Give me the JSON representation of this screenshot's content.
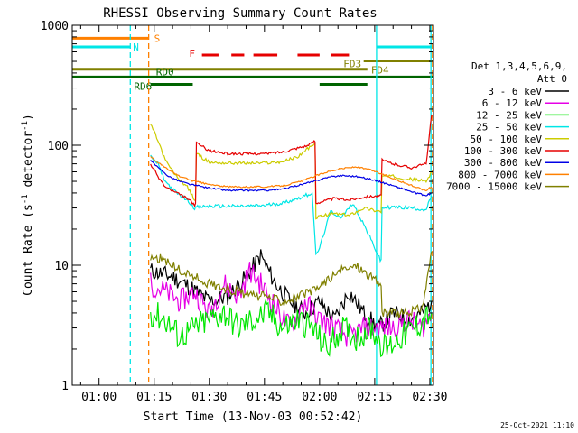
{
  "chart_data": {
    "type": "line",
    "title": "RHESSI Observing Summary Count Rates",
    "xlabel": "Start Time (13-Nov-03 00:52:42)",
    "ylabel_prefix": "Count Rate (s",
    "ylabel_sup": "-1",
    "ylabel_mid": " detector",
    "ylabel_suffix": ")",
    "x_axis": {
      "unit": "minutes since 00:00",
      "range": [
        52.7,
        151.0
      ],
      "ticks": [
        60,
        75,
        90,
        105,
        120,
        135,
        150
      ],
      "tick_labels": [
        "01:00",
        "01:15",
        "01:30",
        "01:45",
        "02:00",
        "02:15",
        "02:30"
      ]
    },
    "y_axis": {
      "scale": "log",
      "range": [
        1,
        1000
      ],
      "ticks": [
        1,
        10,
        100,
        1000
      ],
      "tick_labels": [
        "1",
        "10",
        "100",
        "1000"
      ]
    },
    "legend_header": [
      "Det 1,3,4,5,6,9,",
      "Att 0"
    ],
    "series": [
      {
        "name": "3 - 6 keV",
        "color": "#000000",
        "x": [
          74,
          80,
          85,
          90,
          95,
          100,
          104,
          108,
          112,
          116,
          120,
          124,
          128,
          132,
          136,
          140,
          144,
          148,
          150.5
        ],
        "y": [
          9,
          8,
          6.5,
          5,
          5.5,
          8,
          12,
          7,
          5,
          4,
          5,
          3.5,
          6,
          4,
          3,
          4,
          3.5,
          4,
          5
        ]
      },
      {
        "name": "6 - 12 keV",
        "color": "#e600e6",
        "x": [
          74,
          78,
          82,
          86,
          90,
          94,
          98,
          101,
          104,
          108,
          112,
          116,
          120,
          124,
          128,
          132,
          136,
          140,
          144,
          148,
          150.5
        ],
        "y": [
          7,
          6,
          5,
          6,
          4,
          7,
          5.5,
          9,
          7,
          4.5,
          3,
          5,
          3.5,
          3,
          2.5,
          3,
          3,
          3,
          3.5,
          3,
          4
        ]
      },
      {
        "name": "12 - 25 keV",
        "color": "#00e600",
        "x": [
          74,
          78,
          82,
          86,
          90,
          94,
          98,
          102,
          106,
          110,
          114,
          118,
          122,
          126,
          130,
          134,
          138,
          142,
          146,
          150.5
        ],
        "y": [
          4,
          3.5,
          2.5,
          3,
          3.5,
          4,
          3,
          3.5,
          4,
          3,
          3.5,
          3,
          2,
          3,
          2.5,
          3,
          2,
          2.5,
          3,
          4
        ]
      },
      {
        "name": "25 - 50 keV",
        "color": "#00e6e6",
        "x": [
          74,
          76,
          78,
          81,
          84,
          86,
          86.5,
          90,
          95,
          100,
          105,
          110,
          114,
          118,
          119,
          120,
          123,
          126,
          129,
          132,
          135,
          136.5,
          137,
          140,
          145,
          149,
          150.5
        ],
        "y": [
          80,
          70,
          50,
          40,
          35,
          30,
          30.5,
          31,
          31,
          31,
          31.5,
          33,
          36,
          40,
          12,
          14,
          28,
          25,
          33,
          22,
          14,
          11,
          30,
          30.5,
          30,
          29,
          38
        ]
      },
      {
        "name": "50 - 100 keV",
        "color": "#cccc00",
        "x": [
          74,
          76,
          78,
          81,
          84,
          86,
          86.5,
          90,
          95,
          100,
          105,
          110,
          114,
          117,
          118.5,
          119,
          124,
          128,
          132,
          136.5,
          137,
          140,
          145,
          149,
          150.5
        ],
        "y": [
          150,
          110,
          75,
          55,
          45,
          35,
          85,
          72,
          71,
          71,
          71,
          73,
          80,
          95,
          100,
          25,
          27,
          26,
          30,
          28,
          55,
          55,
          52,
          50,
          60
        ]
      },
      {
        "name": "100 - 300 keV",
        "color": "#e60000",
        "x": [
          74,
          76,
          78,
          81,
          84,
          86,
          86.5,
          90,
          95,
          100,
          105,
          110,
          114,
          117,
          118.5,
          119,
          124,
          128,
          132,
          136.5,
          137,
          140,
          145,
          149,
          150.5
        ],
        "y": [
          70,
          55,
          45,
          40,
          36,
          32,
          105,
          90,
          85,
          85,
          85,
          88,
          95,
          100,
          108,
          33,
          36,
          35,
          37,
          38,
          75,
          70,
          65,
          70,
          180
        ]
      },
      {
        "name": "300 - 800 keV",
        "color": "#0000e6",
        "x": [
          74,
          76,
          79,
          82,
          85,
          90,
          95,
          100,
          105,
          110,
          115,
          118.5,
          122,
          126,
          130,
          134,
          138,
          142,
          146,
          149,
          150.5
        ],
        "y": [
          75,
          65,
          55,
          50,
          47,
          44,
          42,
          42,
          42,
          43,
          47,
          50,
          54,
          56,
          55,
          52,
          48,
          44,
          40,
          38,
          40
        ]
      },
      {
        "name": "800 - 7000 keV",
        "color": "#ff8000",
        "x": [
          74,
          76,
          79,
          82,
          85,
          90,
          95,
          100,
          105,
          110,
          115,
          118.5,
          122,
          126,
          130,
          134,
          138,
          142,
          146,
          149,
          150.5
        ],
        "y": [
          80,
          72,
          62,
          55,
          51,
          47,
          45,
          45,
          45,
          46,
          50,
          55,
          60,
          64,
          66,
          62,
          56,
          50,
          45,
          42,
          45
        ]
      },
      {
        "name": "7000 - 15000 keV",
        "color": "#808000",
        "x": [
          74,
          78,
          82,
          86,
          90,
          94,
          98,
          102,
          106,
          110,
          114,
          118,
          122,
          126,
          130,
          134,
          136.5,
          137,
          140,
          144,
          148,
          150.5
        ],
        "y": [
          12,
          11,
          9,
          8,
          7,
          6.5,
          6,
          5.5,
          5.5,
          5,
          5.5,
          6,
          7.5,
          9,
          10,
          8,
          7,
          4,
          4,
          4,
          4.5,
          13
        ]
      }
    ],
    "flag_bars": [
      {
        "label": "S",
        "color": "#ff8000",
        "y_value": 780,
        "segments": [
          [
            52.7,
            73.5
          ]
        ]
      },
      {
        "label": "N",
        "color": "#00e6e6",
        "y_value": 660,
        "segments": [
          [
            52.7,
            68.5
          ],
          [
            135.5,
            151
          ]
        ]
      },
      {
        "label": "F",
        "color": "#e60000",
        "y_value": 565,
        "segments": [
          [
            88,
            92.5
          ],
          [
            96,
            99.5
          ],
          [
            102,
            108.5
          ],
          [
            114,
            120
          ],
          [
            123,
            128
          ]
        ]
      },
      {
        "label": "FD3",
        "color": "#808000",
        "y_value": 505,
        "segments": [
          [
            132,
            151
          ]
        ]
      },
      {
        "label": "FD4",
        "color": "#808000",
        "y_value": 430,
        "segments": [
          [
            52.7,
            133
          ]
        ]
      },
      {
        "label": "RD0",
        "color": "#006400",
        "y_value": 370,
        "segments": [
          [
            52.7,
            151
          ]
        ]
      },
      {
        "label": "RD6",
        "color": "#006400",
        "y_value": 322,
        "segments": [
          [
            74,
            85.5
          ],
          [
            120,
            133
          ]
        ]
      }
    ],
    "vlines": [
      {
        "x": 68.5,
        "color": "#00e6e6",
        "dashed": true
      },
      {
        "x": 73.5,
        "color": "#ff8000",
        "dashed": true
      },
      {
        "x": 135.5,
        "color": "#00e6e6",
        "dashed": false
      },
      {
        "x": 150.3,
        "color": "#00e6e6",
        "dashed": false
      },
      {
        "x": 150.7,
        "color": "#ff8000",
        "dashed": true
      }
    ]
  },
  "footer": {
    "timestamp": "25-Oct-2021 11:10"
  }
}
